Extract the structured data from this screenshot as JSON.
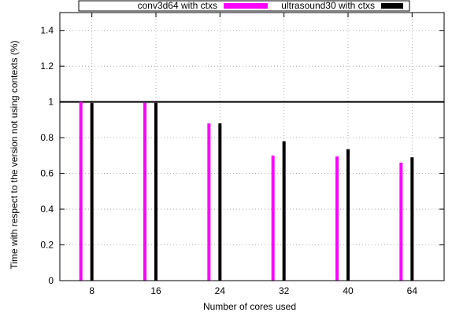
{
  "chart_data": {
    "type": "bar",
    "title": "",
    "xlabel": "Number of cores used",
    "ylabel": "Time with respect to the version not using contexts (%)",
    "categories": [
      "8",
      "16",
      "24",
      "32",
      "40",
      "64"
    ],
    "ylim": [
      0,
      1.5
    ],
    "yticks": [
      "0",
      "0.2",
      "0.4",
      "0.6",
      "0.8",
      "1",
      "1.2",
      "1.4"
    ],
    "grid": true,
    "legend_position": "top",
    "reference_line": 1,
    "series": [
      {
        "name": "conv3d64 with ctxs",
        "color": "#ff00ff",
        "values": [
          1.0,
          0.995,
          0.88,
          0.7,
          0.695,
          0.66
        ]
      },
      {
        "name": "ultrasound30 with ctxs",
        "color": "#000000",
        "values": [
          0.995,
          0.995,
          0.88,
          0.78,
          0.735,
          0.69
        ]
      }
    ]
  }
}
